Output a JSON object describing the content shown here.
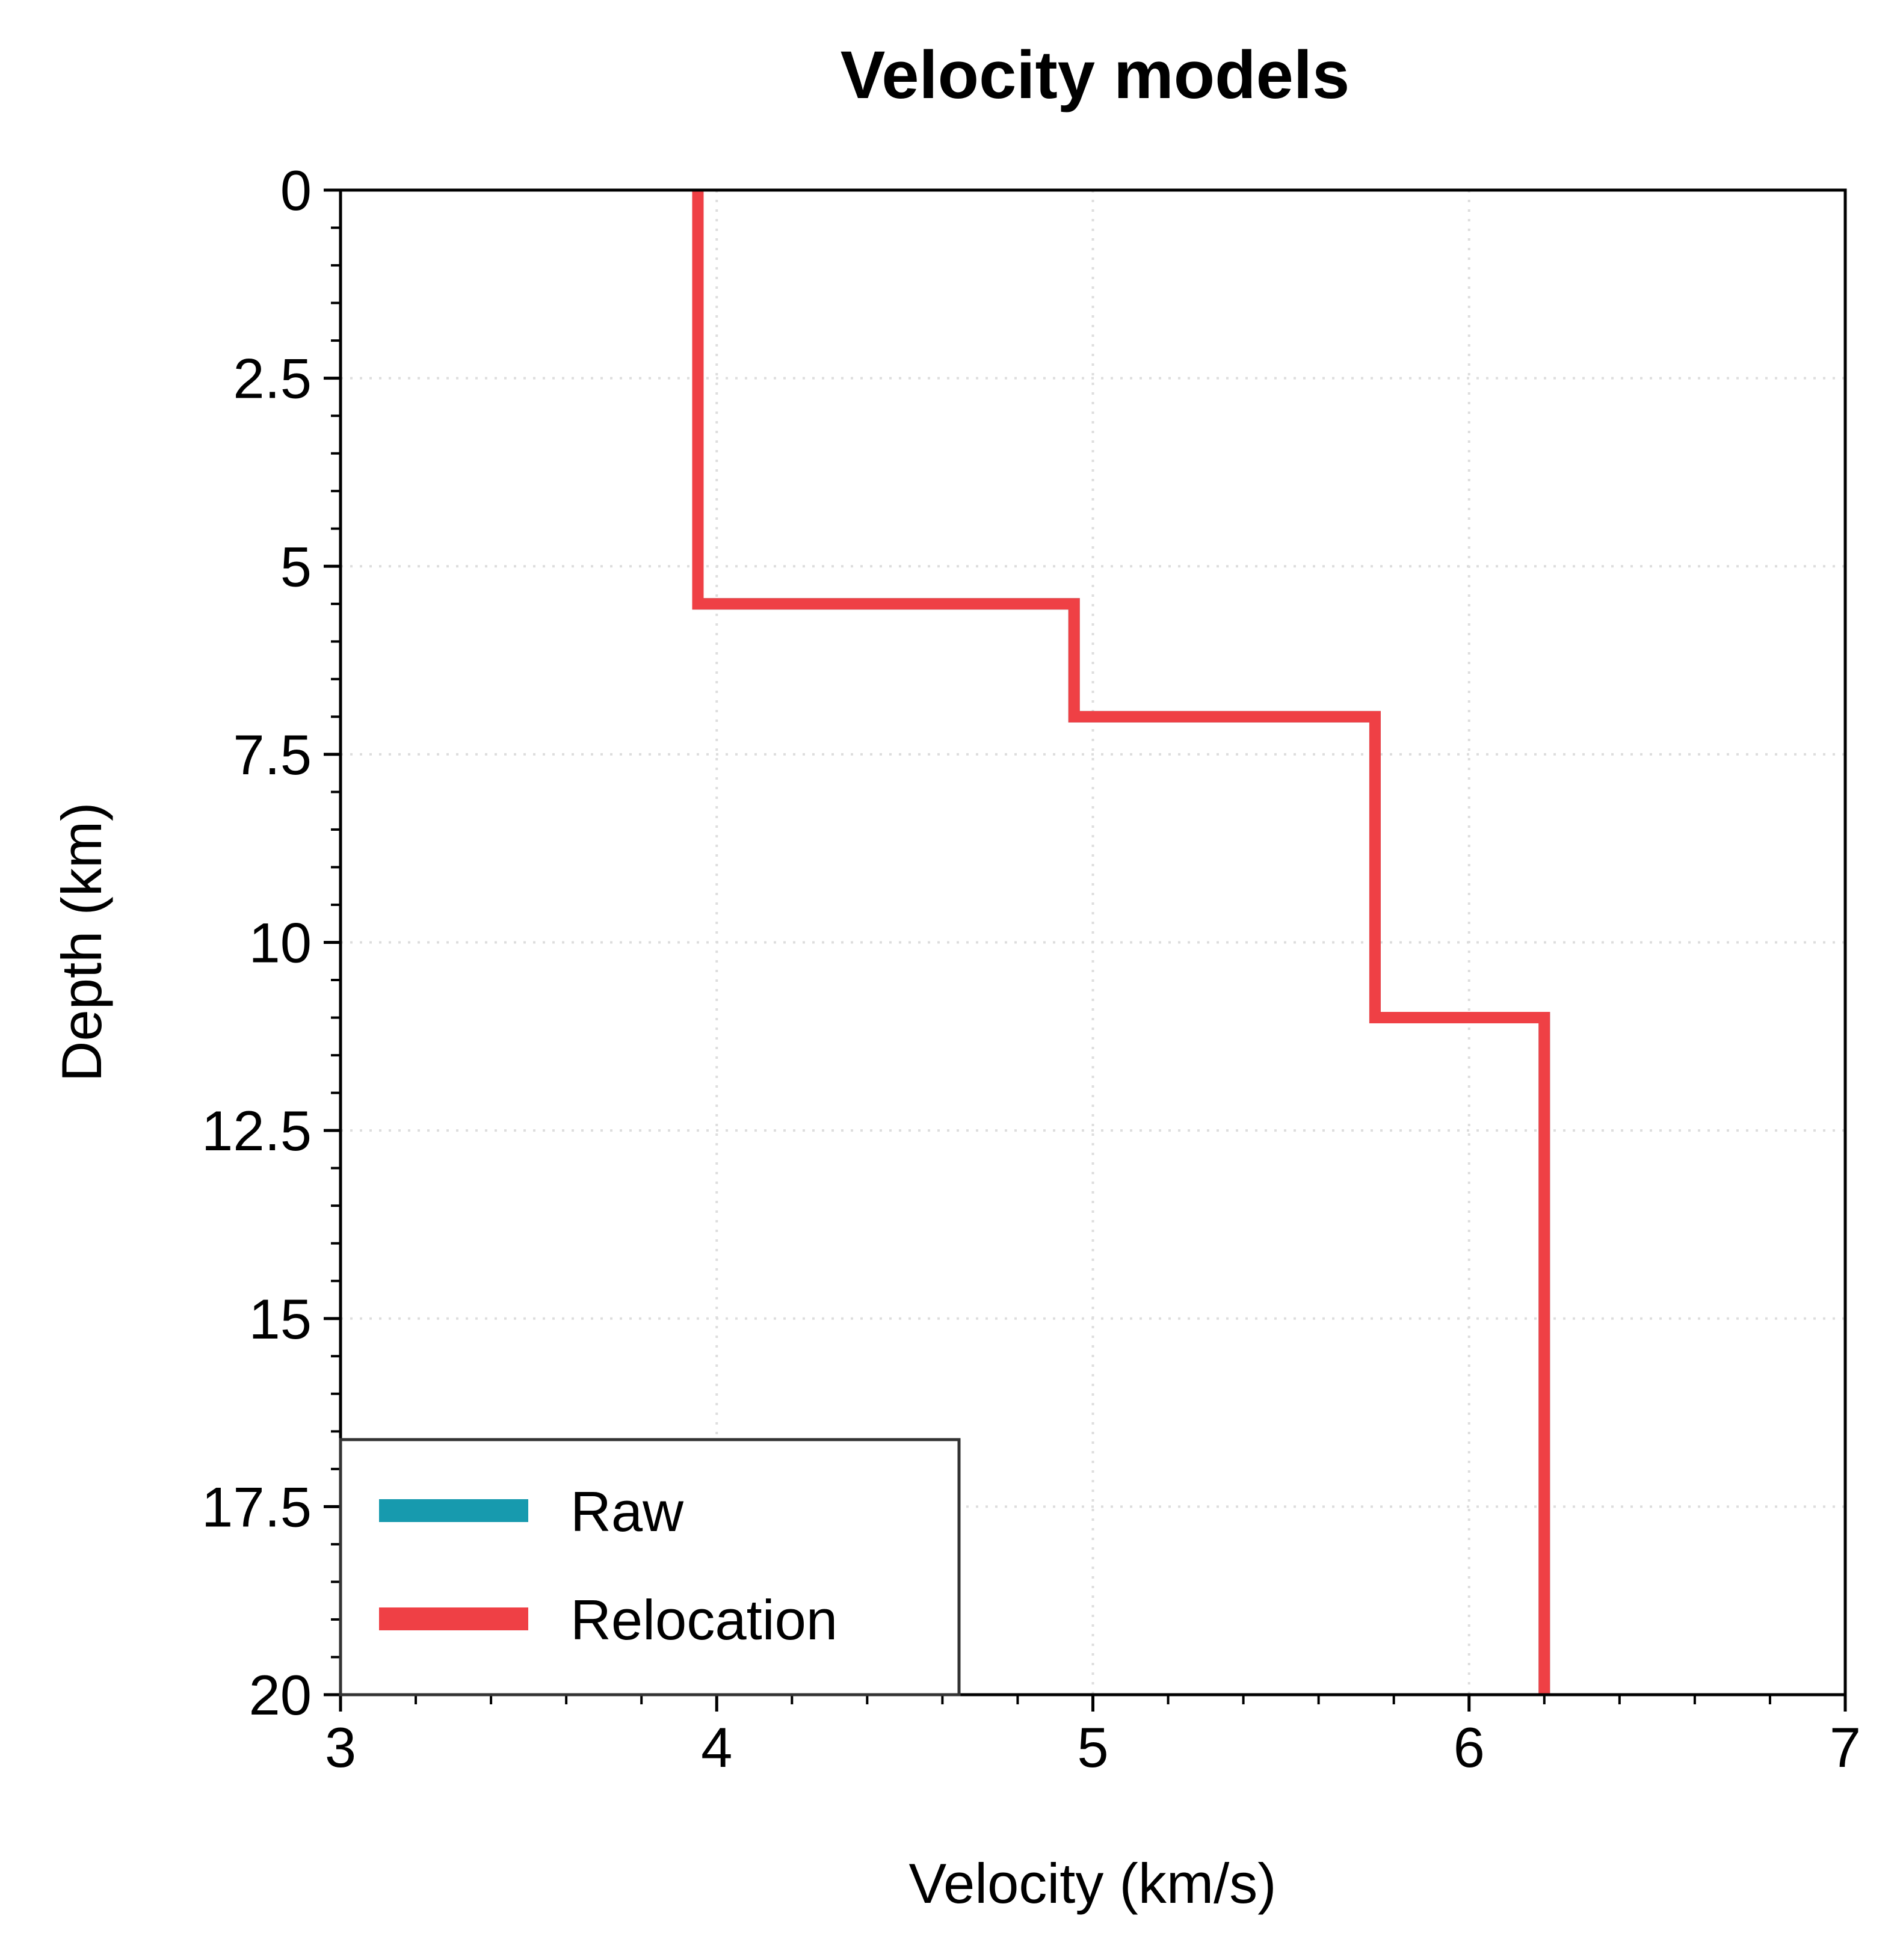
{
  "chart_data": {
    "type": "line",
    "title": "Velocity models",
    "xlabel": "Velocity (km/s)",
    "ylabel": "Depth (km)",
    "xlim": [
      3,
      7
    ],
    "ylim": [
      0,
      20
    ],
    "y_inverted": true,
    "x_ticks": [
      "3",
      "4",
      "5",
      "6",
      "7"
    ],
    "y_ticks": [
      "0",
      "2.5",
      "5",
      "7.5",
      "10",
      "12.5",
      "15",
      "17.5",
      "20"
    ],
    "grid": true,
    "legend_position": "lower-left",
    "series": [
      {
        "name": "Raw",
        "color": "#179aae",
        "steps": [
          {
            "velocity": 3.95,
            "depth_top": 0,
            "depth_bottom": 5.5
          },
          {
            "velocity": 4.95,
            "depth_top": 5.5,
            "depth_bottom": 7.0
          },
          {
            "velocity": 5.75,
            "depth_top": 7.0,
            "depth_bottom": 11.0
          },
          {
            "velocity": 6.2,
            "depth_top": 11.0,
            "depth_bottom": 20.0
          }
        ]
      },
      {
        "name": "Relocation",
        "color": "#ef4045",
        "steps": [
          {
            "velocity": 3.95,
            "depth_top": 0,
            "depth_bottom": 5.5
          },
          {
            "velocity": 4.95,
            "depth_top": 5.5,
            "depth_bottom": 7.0
          },
          {
            "velocity": 5.75,
            "depth_top": 7.0,
            "depth_bottom": 11.0
          },
          {
            "velocity": 6.2,
            "depth_top": 11.0,
            "depth_bottom": 20.0
          }
        ]
      }
    ]
  }
}
